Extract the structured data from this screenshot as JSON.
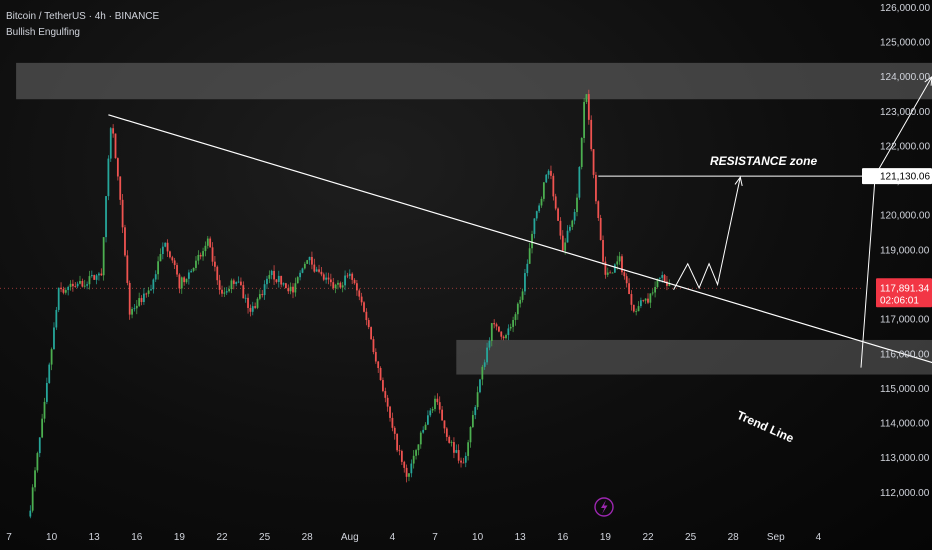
{
  "header": {
    "symbol_line": "Bitcoin / TetherUS · 4h · BINANCE",
    "indicator": "Bullish Engulfing"
  },
  "annotations": {
    "resistance_label": "RESISTANCE zone",
    "trendline_label": "Trend Line",
    "resistance_price": "121,130.06",
    "current_price": "117,891.34",
    "countdown": "02:06:01"
  },
  "colors": {
    "up": "#26a69a",
    "up_bright": "#4caf50",
    "down": "#ef5350",
    "zone": "#6b6b6b",
    "current_price_bg": "#f23645",
    "resistance_tag_bg": "#ffffff",
    "lightning_badge": "#9c27b0"
  },
  "icons": [
    "lightning-icon"
  ],
  "chart_data": {
    "type": "candlestick",
    "title": "",
    "y_axis": {
      "ticks": [
        "112,000.00",
        "113,000.00",
        "114,000.00",
        "115,000.00",
        "116,000.00",
        "117,000.00",
        "118,000.00",
        "119,000.00",
        "120,000.00",
        "121,000.00",
        "122,000.00",
        "123,000.00",
        "124,000.00",
        "125,000.00",
        "126,000.00"
      ],
      "range": [
        111200,
        126100
      ],
      "position": "right"
    },
    "x_axis": {
      "ticks": [
        "7",
        "10",
        "13",
        "16",
        "19",
        "22",
        "25",
        "28",
        "Aug",
        "4",
        "7",
        "10",
        "13",
        "16",
        "19",
        "22",
        "25",
        "28",
        "Sep",
        "4"
      ]
    },
    "price_path": [
      {
        "d": 1.5,
        "p": 111600
      },
      {
        "d": 2.5,
        "p": 114500
      },
      {
        "d": 3.5,
        "p": 117800
      },
      {
        "d": 5.5,
        "p": 118100
      },
      {
        "d": 6.5,
        "p": 118300
      },
      {
        "d": 7.2,
        "p": 122800
      },
      {
        "d": 7.8,
        "p": 120500
      },
      {
        "d": 8.5,
        "p": 117200
      },
      {
        "d": 10,
        "p": 117900
      },
      {
        "d": 11,
        "p": 119300
      },
      {
        "d": 12,
        "p": 118000
      },
      {
        "d": 13,
        "p": 118500
      },
      {
        "d": 14,
        "p": 119200
      },
      {
        "d": 15,
        "p": 117700
      },
      {
        "d": 16,
        "p": 118200
      },
      {
        "d": 17,
        "p": 117200
      },
      {
        "d": 18.5,
        "p": 118300
      },
      {
        "d": 20,
        "p": 117800
      },
      {
        "d": 21,
        "p": 118800
      },
      {
        "d": 22,
        "p": 118200
      },
      {
        "d": 23,
        "p": 117900
      },
      {
        "d": 24,
        "p": 118300
      },
      {
        "d": 25,
        "p": 117300
      },
      {
        "d": 26,
        "p": 115600
      },
      {
        "d": 27,
        "p": 113800
      },
      {
        "d": 28,
        "p": 112400
      },
      {
        "d": 29,
        "p": 113600
      },
      {
        "d": 30,
        "p": 114700
      },
      {
        "d": 31,
        "p": 113500
      },
      {
        "d": 32,
        "p": 112800
      },
      {
        "d": 33,
        "p": 114900
      },
      {
        "d": 34,
        "p": 116800
      },
      {
        "d": 35,
        "p": 116500
      },
      {
        "d": 36,
        "p": 117500
      },
      {
        "d": 37,
        "p": 119800
      },
      {
        "d": 38,
        "p": 121400
      },
      {
        "d": 39,
        "p": 119100
      },
      {
        "d": 40,
        "p": 120400
      },
      {
        "d": 40.6,
        "p": 123800
      },
      {
        "d": 41.2,
        "p": 121000
      },
      {
        "d": 42,
        "p": 118200
      },
      {
        "d": 43,
        "p": 118700
      },
      {
        "d": 44,
        "p": 117300
      },
      {
        "d": 45,
        "p": 117600
      },
      {
        "d": 46,
        "p": 118300
      },
      {
        "d": 46.6,
        "p": 117900
      }
    ],
    "resistance_zone": {
      "low": 123350,
      "high": 124400,
      "from_day": 0.5,
      "to_day": 79.5
    },
    "support_zone": {
      "low": 115400,
      "high": 116400,
      "from_day": 31.5,
      "to_day": 71.5
    },
    "resistance_line": {
      "price": 121130.06,
      "from_day": 41.5
    },
    "trend_line": {
      "from": {
        "d": 7.0,
        "p": 122900
      },
      "to": {
        "d": 80.0,
        "p": 113900
      }
    },
    "projection_path": [
      {
        "d": 46.8,
        "p": 117850
      },
      {
        "d": 47.8,
        "p": 118600
      },
      {
        "d": 48.6,
        "p": 117900
      },
      {
        "d": 49.3,
        "p": 118600
      },
      {
        "d": 49.9,
        "p": 118000
      },
      {
        "d": 51.5,
        "p": 121100
      }
    ],
    "breakout_arrow": [
      {
        "d": 60.0,
        "p": 115600
      },
      {
        "d": 61.0,
        "p": 121150
      },
      {
        "d": 65.0,
        "p": 124000
      }
    ],
    "current_price": 117891.34
  }
}
